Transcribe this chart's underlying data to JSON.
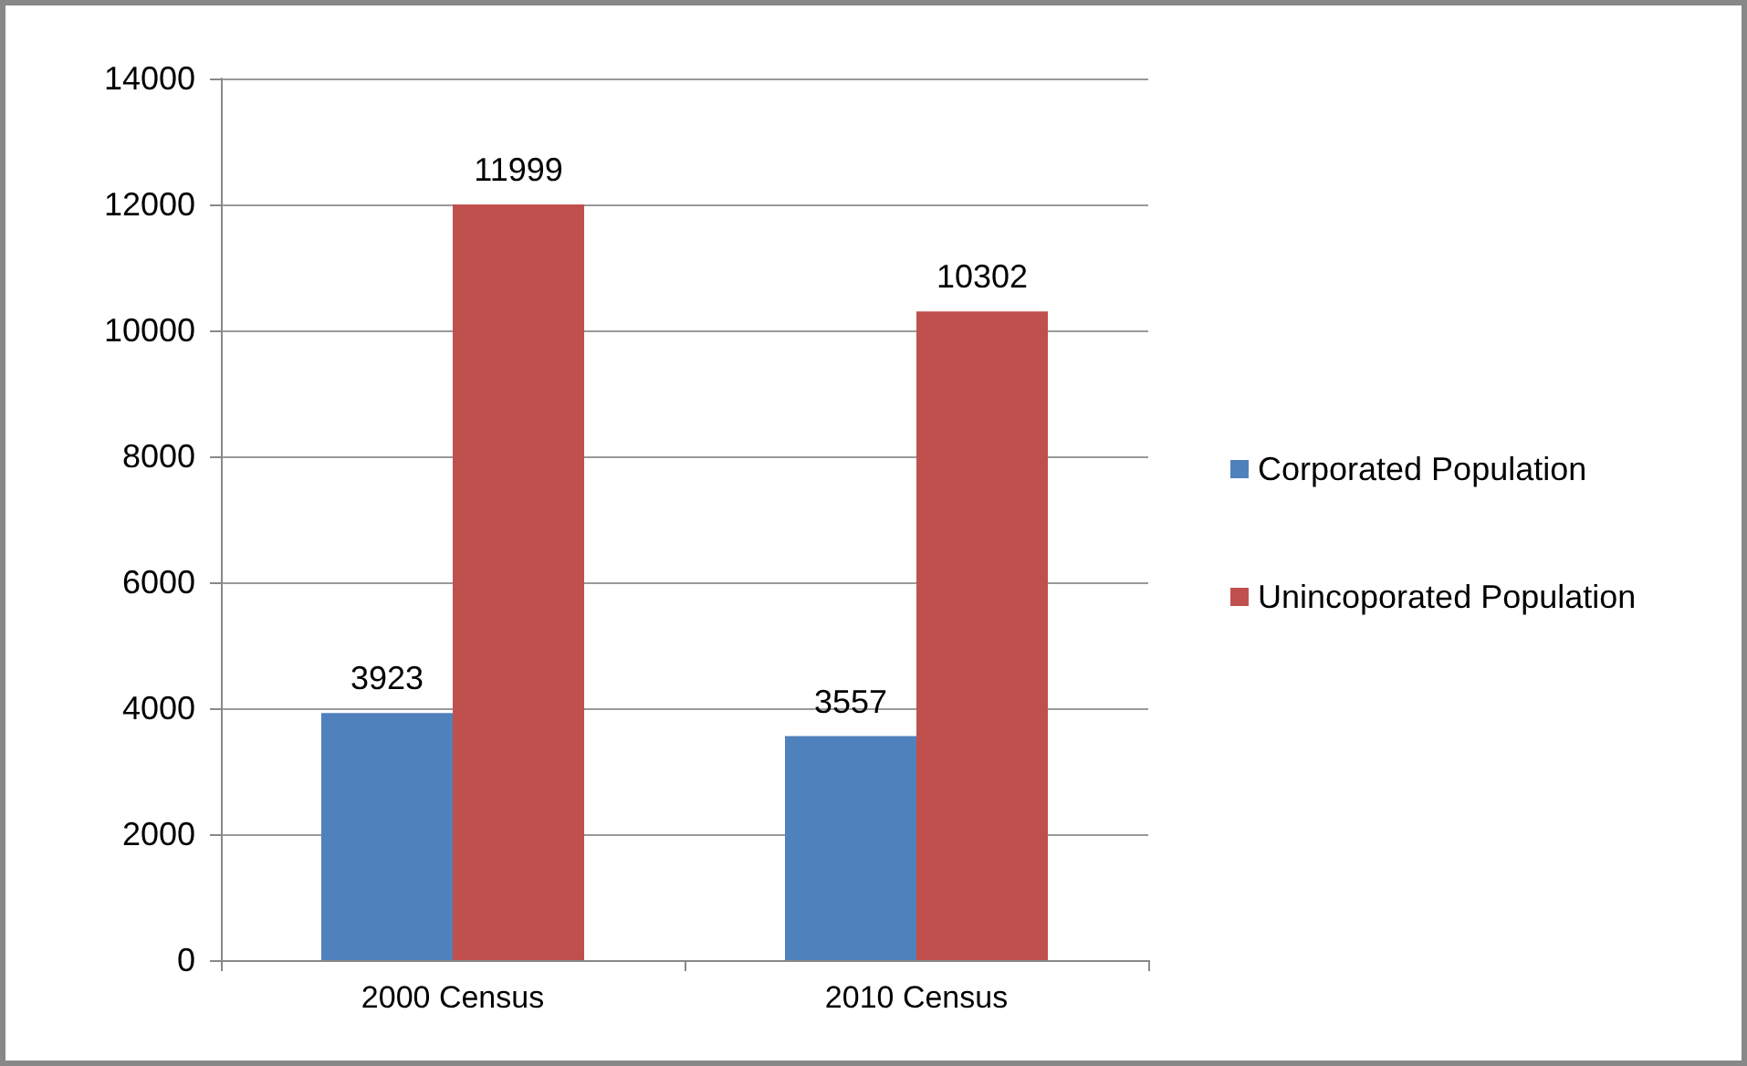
{
  "chart_data": {
    "type": "bar",
    "categories": [
      "2000 Census",
      "2010 Census"
    ],
    "series": [
      {
        "name": "Corporated Population",
        "color": "#4f81bd",
        "values": [
          3923,
          3557
        ]
      },
      {
        "name": "Unincoporated Population",
        "color": "#c0504d",
        "values": [
          11999,
          10302
        ]
      }
    ],
    "ylim": [
      0,
      14000
    ],
    "yticks": [
      0,
      2000,
      4000,
      6000,
      8000,
      10000,
      12000,
      14000
    ],
    "grid": "y",
    "legend": "right",
    "data_labels": true
  }
}
